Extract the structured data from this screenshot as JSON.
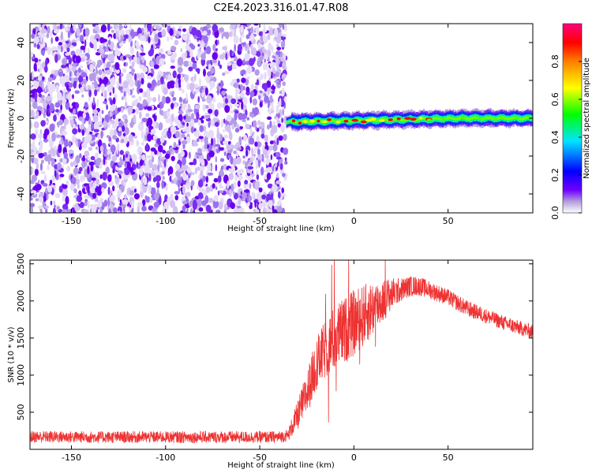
{
  "title": "C2E4.2023.316.01.47.R08",
  "chart_data": [
    {
      "type": "heatmap",
      "xlabel": "Height of straight line (km)",
      "ylabel": "Frequency (Hz)",
      "xlim": [
        -172,
        95
      ],
      "ylim": [
        -50,
        50
      ],
      "xticks": [
        -150,
        -100,
        -50,
        0,
        50
      ],
      "yticks": [
        -40,
        -20,
        0,
        20,
        40
      ],
      "colorbar": {
        "label": "Normalized spectral amplitude",
        "range": [
          0,
          1
        ],
        "ticks": [
          0.0,
          0.2,
          0.4,
          0.6,
          0.8
        ],
        "colormap": [
          "#ffffff",
          "#b39ddb",
          "#6a00ff",
          "#0000ff",
          "#00e5ff",
          "#00ff00",
          "#ffff00",
          "#ff0000",
          "#ff0080"
        ]
      },
      "noise_region": {
        "x": [
          -172,
          -36
        ],
        "amplitude": [
          0.05,
          0.3
        ]
      },
      "signal_band": {
        "x": [
          -36,
          95
        ],
        "center_frequency": [
          -2,
          0
        ],
        "half_width": 3,
        "amplitude": [
          0.3,
          0.9
        ]
      },
      "grid": false
    },
    {
      "type": "line",
      "xlabel": "Height of straight line (km)",
      "ylabel": "SNR (10 * v/v)",
      "xlim": [
        -172,
        95
      ],
      "ylim": [
        0,
        2550
      ],
      "xticks": [
        -150,
        -100,
        -50,
        0,
        50
      ],
      "yticks": [
        500,
        1000,
        1500,
        2000,
        2500
      ],
      "color": "#ee3333",
      "envelope_x": [
        -172,
        -140,
        -100,
        -60,
        -40,
        -35,
        -30,
        -25,
        -20,
        -15,
        -10,
        -5,
        0,
        5,
        10,
        15,
        20,
        25,
        30,
        35,
        40,
        50,
        60,
        70,
        80,
        95
      ],
      "envelope_y": [
        170,
        165,
        165,
        165,
        165,
        190,
        450,
        750,
        1150,
        1350,
        1500,
        1600,
        1700,
        1800,
        1900,
        2000,
        2100,
        2150,
        2200,
        2200,
        2150,
        2050,
        1900,
        1800,
        1700,
        1580
      ],
      "spread": [
        80,
        80,
        80,
        80,
        80,
        80,
        200,
        300,
        350,
        400,
        450,
        450,
        450,
        420,
        380,
        300,
        220,
        160,
        140,
        130,
        120,
        110,
        110,
        100,
        100,
        100
      ],
      "grid": false
    }
  ]
}
